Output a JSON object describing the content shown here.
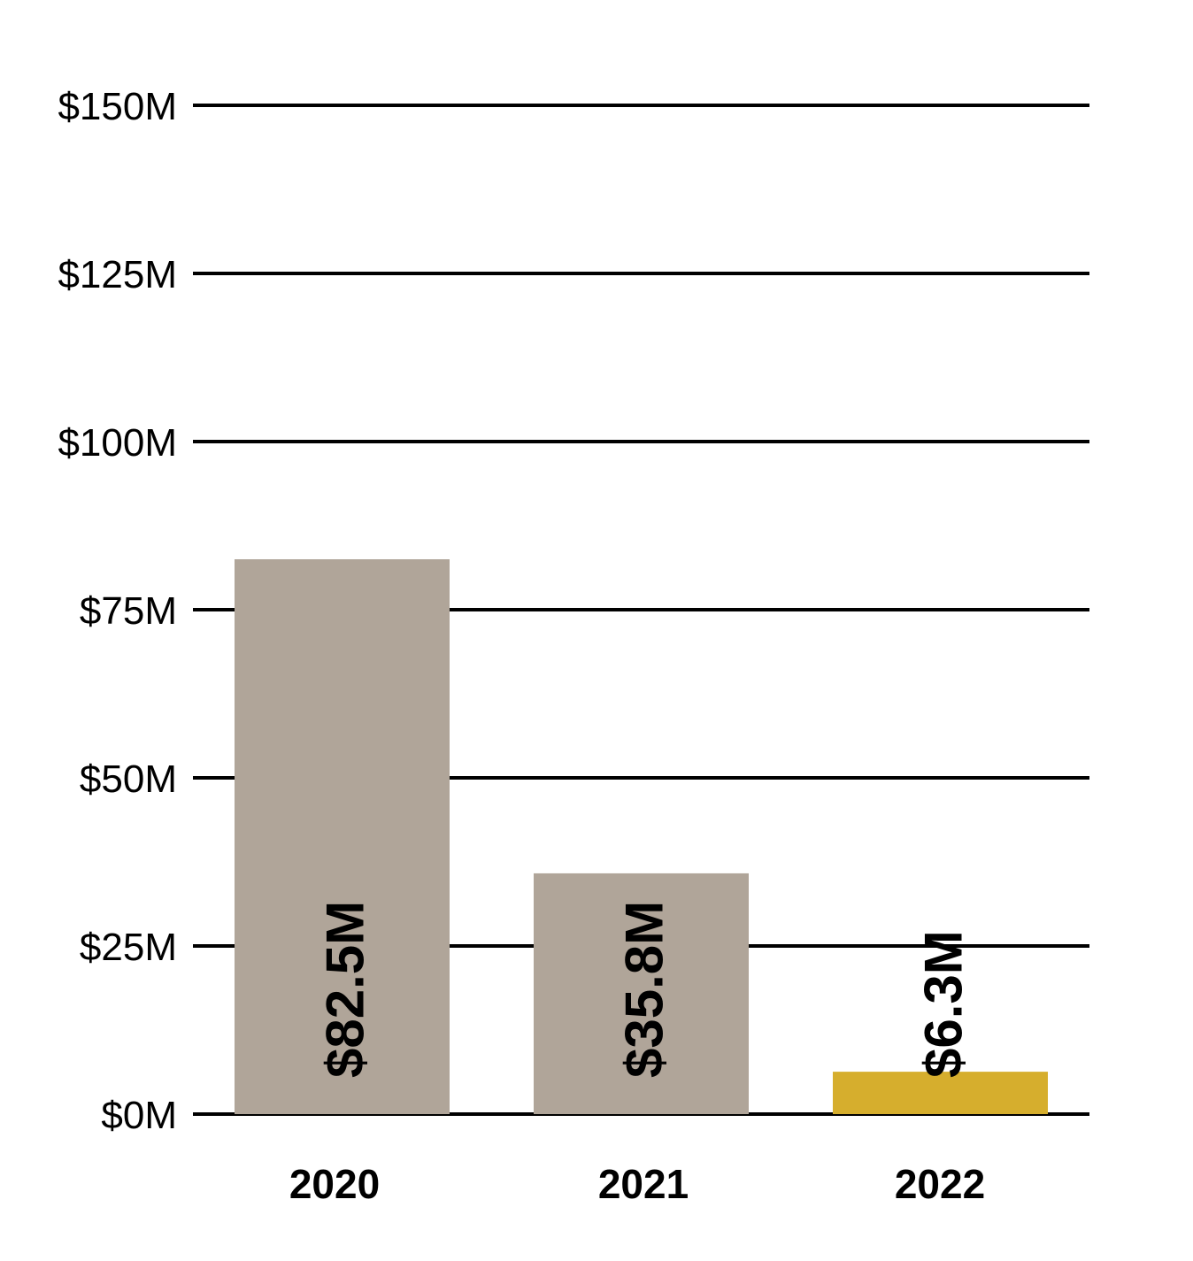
{
  "chart_data": {
    "type": "bar",
    "title": "",
    "xlabel": "",
    "ylabel": "",
    "categories": [
      "2020",
      "2021",
      "2022"
    ],
    "values": [
      82.5,
      35.8,
      6.3
    ],
    "data_labels": [
      "$82.5M",
      "$35.8M",
      "$6.3M"
    ],
    "bar_colors": [
      "#b0a599",
      "#b0a599",
      "#d6ae2d"
    ],
    "ylim": [
      0,
      150
    ],
    "yticks": [
      0,
      25,
      50,
      75,
      100,
      125,
      150
    ],
    "ytick_labels": [
      "$0M",
      "$25M",
      "$50M",
      "$75M",
      "$100M",
      "$125M",
      "$150M"
    ],
    "grid": true,
    "gridline_color": "#000000"
  }
}
